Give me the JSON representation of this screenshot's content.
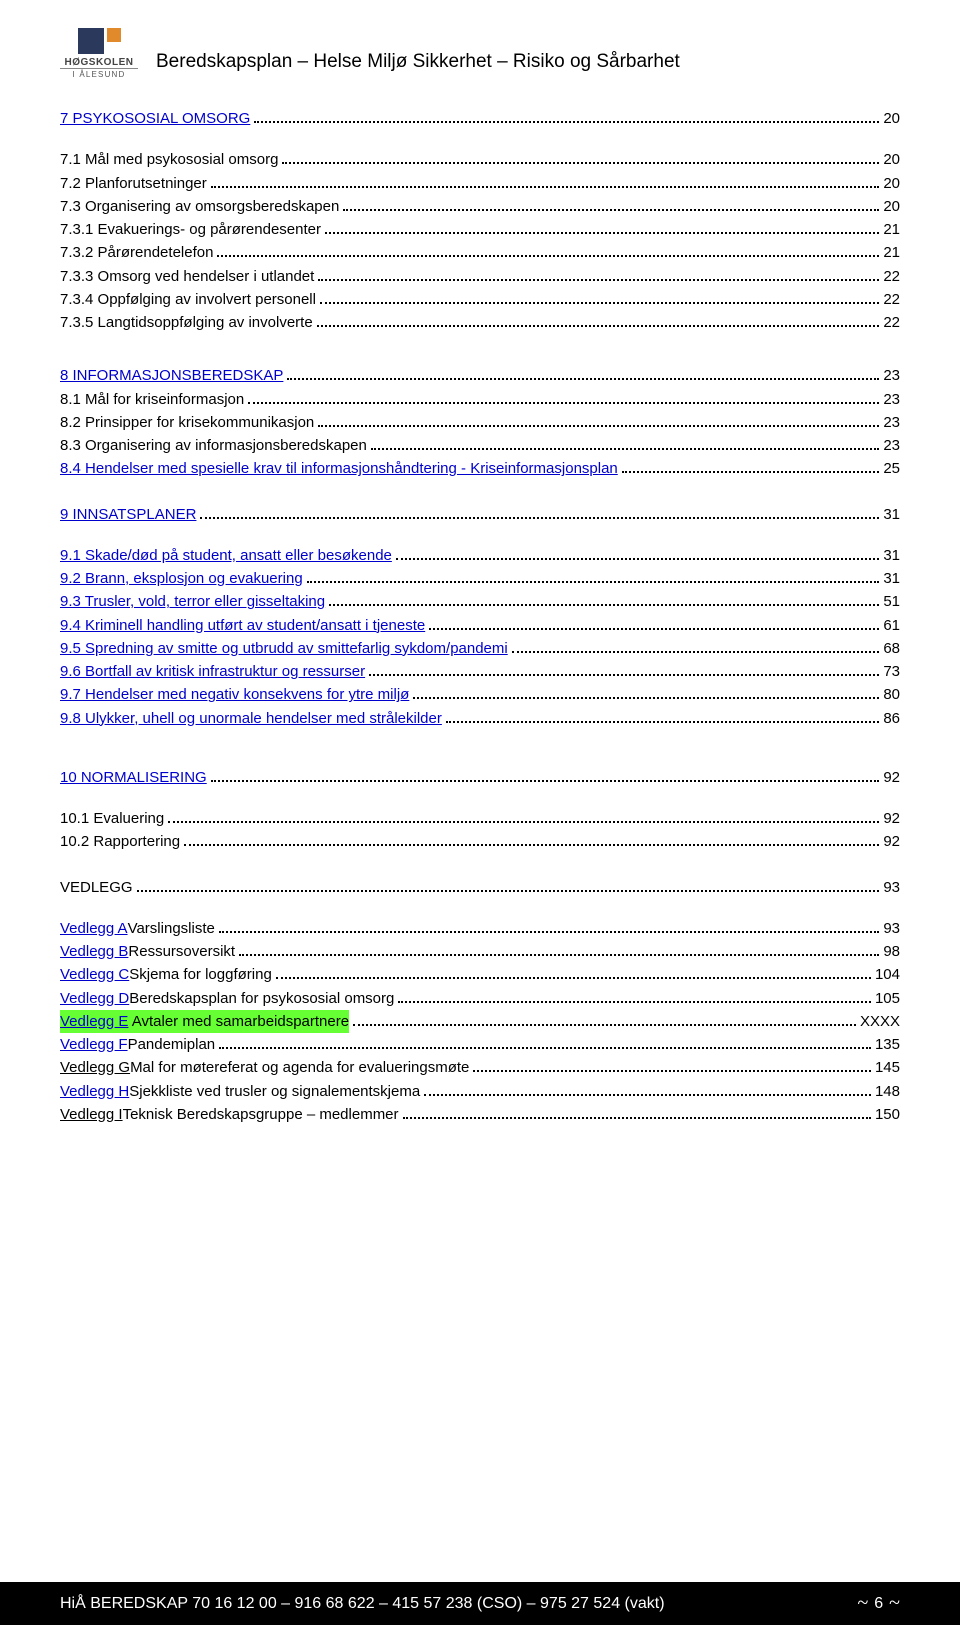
{
  "logo": {
    "line1": "HØGSKOLEN",
    "line2": "I ÅLESUND"
  },
  "doc_title": "Beredskapsplan – Helse Miljø Sikkerhet – Risiko og Sårbarhet",
  "sections": [
    {
      "id": "s7",
      "spacing_after": 30,
      "items": [
        {
          "label": "7  PSYKOSOSIAL OMSORG",
          "page": "20",
          "link": true
        },
        {
          "label": "7.1 Mål med psykososial omsorg",
          "page": "20",
          "link": false
        },
        {
          "label": "7.2 Planforutsetninger",
          "page": "20",
          "link": false
        },
        {
          "label": "7.3 Organisering av omsorgsberedskapen",
          "page": "20",
          "link": false
        },
        {
          "label": "7.3.1 Evakuerings- og pårørendesenter",
          "page": "21",
          "link": false
        },
        {
          "label": "7.3.2 Pårørendetelefon",
          "page": "21",
          "link": false
        },
        {
          "label": "7.3.3 Omsorg ved hendelser i utlandet",
          "page": "22",
          "link": false
        },
        {
          "label": "7.3.4 Oppfølging av involvert personell",
          "page": "22",
          "link": false
        },
        {
          "label": "7.3.5 Langtidsoppfølging av involverte",
          "page": "22",
          "link": false
        }
      ]
    },
    {
      "id": "s8",
      "spacing_after": 22,
      "items": [
        {
          "label": "8  INFORMASJONSBEREDSKAP",
          "page": "23",
          "link": true
        },
        {
          "label": "8.1  Mål for kriseinformasjon",
          "page": "23",
          "link": false
        },
        {
          "label": "8.2  Prinsipper for krisekommunikasjon",
          "page": "23",
          "link": false
        },
        {
          "label": "8.3  Organisering av informasjonsberedskapen",
          "page": "23",
          "link": false
        },
        {
          "label": "8.4  Hendelser med spesielle krav til informasjonshåndtering - Kriseinformasjonsplan",
          "page": "25",
          "link": true
        }
      ]
    },
    {
      "id": "s9",
      "spacing_after": 36,
      "items": [
        {
          "label": "9  INNSATSPLANER",
          "page": "31",
          "link": true
        },
        {
          "label": "9.1 Skade/død på student, ansatt eller besøkende",
          "page": "31",
          "link": true
        },
        {
          "label": "9.2 Brann, eksplosjon og evakuering",
          "page": "31",
          "link": true
        },
        {
          "label": "9.3 Trusler, vold, terror eller gisseltaking",
          "page": "51",
          "link": true
        },
        {
          "label": "9.4  Kriminell handling utført av student/ansatt i tjeneste",
          "page": "61",
          "link": true
        },
        {
          "label": "9.5  Spredning av smitte og utbrudd av smittefarlig sykdom/pandemi",
          "page": "68",
          "link": true
        },
        {
          "label": "9.6  Bortfall av kritisk infrastruktur og ressurser",
          "page": "73",
          "link": true
        },
        {
          "label": "9.7  Hendelser med negativ konsekvens for ytre miljø",
          "page": "80",
          "link": true
        },
        {
          "label": "9.8  Ulykker, uhell og unormale hendelser med strålekilder",
          "page": "86",
          "link": true
        }
      ]
    },
    {
      "id": "s10",
      "spacing_after": 22,
      "items": [
        {
          "label": "10  NORMALISERING",
          "page": "92",
          "link": true
        },
        {
          "label": "10.1 Evaluering",
          "page": "92",
          "link": false
        },
        {
          "label": "10.2 Rapportering",
          "page": "92",
          "link": false
        }
      ]
    },
    {
      "id": "vedlegg",
      "spacing_after": 30,
      "items": [
        {
          "label": "VEDLEGG",
          "page": "93",
          "link": false,
          "bold": false
        },
        {
          "prefix": "Vedlegg A",
          "suffix": "  Varslingsliste",
          "page": "93",
          "link": true
        },
        {
          "prefix": "Vedlegg B",
          "suffix": "  Ressursoversikt",
          "page": "98",
          "link": true
        },
        {
          "prefix": "Vedlegg C",
          "suffix": "  Skjema for loggføring",
          "page": "104",
          "link": true
        },
        {
          "prefix": "Vedlegg D",
          "suffix": "  Beredskapsplan for psykososial omsorg",
          "page": "105",
          "link": true
        },
        {
          "prefix": "Vedlegg E",
          "suffix": "  Avtaler med samarbeidspartnere",
          "page": "XXXX",
          "link": true,
          "highlight": true
        },
        {
          "prefix": "Vedlegg F",
          "suffix": "  Pandemiplan",
          "page": "135",
          "link": true
        },
        {
          "prefix": "Vedlegg G",
          "suffix": " Mal for møtereferat og agenda for evalueringsmøte",
          "page": "145",
          "link": true,
          "black_under_prefix": true
        },
        {
          "prefix": "Vedlegg H",
          "suffix": " Sjekkliste ved trusler og signalementskjema",
          "page": "148",
          "link": true
        },
        {
          "prefix": "Vedlegg I",
          "suffix": "  Teknisk Beredskapsgruppe – medlemmer",
          "page": "150",
          "link": true,
          "black_under_prefix": true
        }
      ]
    }
  ],
  "footer": {
    "left": "HiÅ BEREDSKAP   70 16 12 00 – 916 68 622 – 415 57 238 (CSO) – 975 27 524 (vakt)",
    "page_num": "6"
  }
}
